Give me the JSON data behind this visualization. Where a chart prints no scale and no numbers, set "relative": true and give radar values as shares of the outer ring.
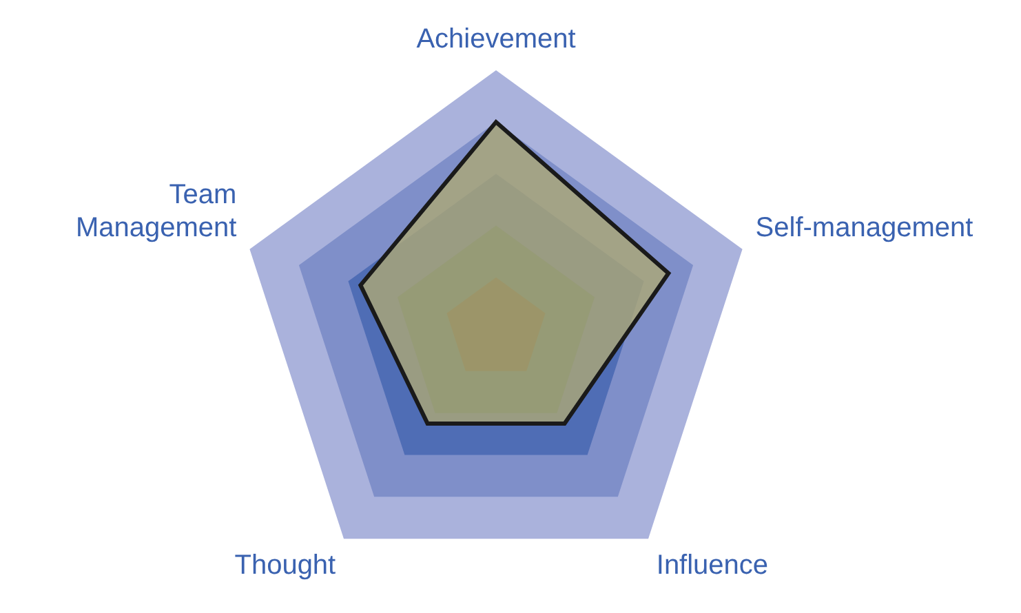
{
  "chart_data": {
    "type": "radar",
    "relative": true,
    "categories": [
      "Achievement",
      "Self-management",
      "Influence",
      "Thought",
      "Team Management"
    ],
    "series": [
      {
        "color": "#aca776",
        "values": [
          0.8,
          0.7,
          0.45,
          0.45,
          0.55
        ]
      }
    ],
    "legend": false
  }
}
